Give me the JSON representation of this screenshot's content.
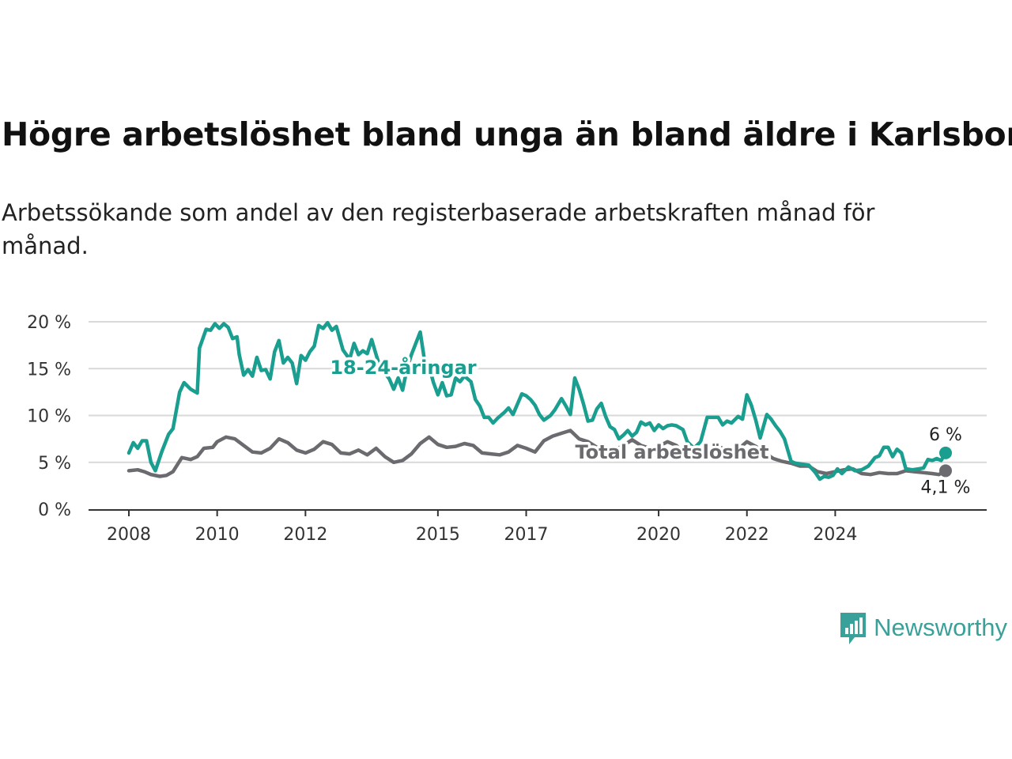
{
  "title": "Högre arbetslöshet bland unga än bland äldre i Karlsborg",
  "subtitle": "Arbetssökande som andel av den registerbaserade arbetskraften månad för månad.",
  "brand": {
    "name": "Newsworthy",
    "color": "#3aa19a"
  },
  "chart_data": {
    "type": "line",
    "x_unit": "year",
    "ylim": [
      0,
      20
    ],
    "y_ticks": [
      "0 %",
      "5 %",
      "10 %",
      "15 %",
      "20 %"
    ],
    "x_ticks": [
      "2008",
      "2010",
      "2012",
      "2015",
      "2017",
      "2020",
      "2022",
      "2024"
    ],
    "grid": true,
    "series": [
      {
        "name": "18-24-åringar",
        "color": "#1a9e8f",
        "end_label": "6 %",
        "points": [
          [
            2008.0,
            6.0
          ],
          [
            2008.1,
            7.1
          ],
          [
            2008.2,
            6.5
          ],
          [
            2008.3,
            7.3
          ],
          [
            2008.4,
            7.3
          ],
          [
            2008.5,
            5.0
          ],
          [
            2008.6,
            4.1
          ],
          [
            2008.75,
            6.2
          ],
          [
            2008.9,
            8.0
          ],
          [
            2009.0,
            8.6
          ],
          [
            2009.15,
            12.5
          ],
          [
            2009.25,
            13.5
          ],
          [
            2009.4,
            12.8
          ],
          [
            2009.55,
            12.4
          ],
          [
            2009.6,
            17.2
          ],
          [
            2009.75,
            19.2
          ],
          [
            2009.85,
            19.1
          ],
          [
            2009.95,
            19.8
          ],
          [
            2010.05,
            19.3
          ],
          [
            2010.15,
            19.8
          ],
          [
            2010.25,
            19.4
          ],
          [
            2010.35,
            18.2
          ],
          [
            2010.45,
            18.4
          ],
          [
            2010.5,
            16.5
          ],
          [
            2010.6,
            14.3
          ],
          [
            2010.7,
            14.9
          ],
          [
            2010.8,
            14.2
          ],
          [
            2010.9,
            16.2
          ],
          [
            2011.0,
            14.8
          ],
          [
            2011.1,
            14.9
          ],
          [
            2011.2,
            13.9
          ],
          [
            2011.3,
            16.8
          ],
          [
            2011.4,
            18.0
          ],
          [
            2011.5,
            15.6
          ],
          [
            2011.6,
            16.2
          ],
          [
            2011.7,
            15.6
          ],
          [
            2011.8,
            13.4
          ],
          [
            2011.9,
            16.4
          ],
          [
            2012.0,
            15.9
          ],
          [
            2012.1,
            16.8
          ],
          [
            2012.2,
            17.4
          ],
          [
            2012.3,
            19.6
          ],
          [
            2012.4,
            19.3
          ],
          [
            2012.5,
            19.9
          ],
          [
            2012.6,
            19.1
          ],
          [
            2012.7,
            19.5
          ],
          [
            2012.85,
            17.0
          ],
          [
            2013.0,
            16.0
          ],
          [
            2013.1,
            17.7
          ],
          [
            2013.2,
            16.5
          ],
          [
            2013.3,
            16.9
          ],
          [
            2013.4,
            16.6
          ],
          [
            2013.5,
            18.1
          ],
          [
            2013.6,
            16.5
          ],
          [
            2013.7,
            15.0
          ],
          [
            2013.8,
            14.5
          ],
          [
            2013.9,
            13.9
          ],
          [
            2014.0,
            12.8
          ],
          [
            2014.1,
            14.0
          ],
          [
            2014.2,
            12.7
          ],
          [
            2014.3,
            15.0
          ],
          [
            2014.4,
            16.5
          ],
          [
            2014.5,
            17.7
          ],
          [
            2014.6,
            18.9
          ],
          [
            2014.7,
            15.8
          ],
          [
            2014.8,
            15.2
          ],
          [
            2014.9,
            13.5
          ],
          [
            2015.0,
            12.2
          ],
          [
            2015.1,
            13.5
          ],
          [
            2015.2,
            12.1
          ],
          [
            2015.3,
            12.2
          ],
          [
            2015.4,
            14.0
          ],
          [
            2015.5,
            13.6
          ],
          [
            2015.6,
            14.2
          ],
          [
            2015.75,
            13.6
          ],
          [
            2015.85,
            11.7
          ],
          [
            2015.95,
            11.0
          ],
          [
            2016.05,
            9.8
          ],
          [
            2016.15,
            9.8
          ],
          [
            2016.25,
            9.2
          ],
          [
            2016.35,
            9.7
          ],
          [
            2016.5,
            10.3
          ],
          [
            2016.6,
            10.8
          ],
          [
            2016.7,
            10.1
          ],
          [
            2016.8,
            11.2
          ],
          [
            2016.9,
            12.3
          ],
          [
            2017.0,
            12.1
          ],
          [
            2017.1,
            11.7
          ],
          [
            2017.2,
            11.1
          ],
          [
            2017.3,
            10.1
          ],
          [
            2017.4,
            9.5
          ],
          [
            2017.55,
            10.0
          ],
          [
            2017.65,
            10.6
          ],
          [
            2017.8,
            11.8
          ],
          [
            2017.9,
            11.0
          ],
          [
            2018.0,
            10.1
          ],
          [
            2018.1,
            14.0
          ],
          [
            2018.2,
            12.8
          ],
          [
            2018.3,
            11.2
          ],
          [
            2018.4,
            9.4
          ],
          [
            2018.5,
            9.5
          ],
          [
            2018.6,
            10.7
          ],
          [
            2018.7,
            11.3
          ],
          [
            2018.8,
            9.9
          ],
          [
            2018.9,
            8.8
          ],
          [
            2019.0,
            8.5
          ],
          [
            2019.1,
            7.5
          ],
          [
            2019.2,
            7.9
          ],
          [
            2019.3,
            8.4
          ],
          [
            2019.4,
            7.8
          ],
          [
            2019.5,
            8.2
          ],
          [
            2019.6,
            9.3
          ],
          [
            2019.7,
            9.0
          ],
          [
            2019.8,
            9.2
          ],
          [
            2019.9,
            8.4
          ],
          [
            2020.0,
            9.0
          ],
          [
            2020.1,
            8.6
          ],
          [
            2020.2,
            8.9
          ],
          [
            2020.3,
            9.0
          ],
          [
            2020.4,
            8.9
          ],
          [
            2020.55,
            8.5
          ],
          [
            2020.65,
            7.2
          ],
          [
            2020.8,
            6.5
          ],
          [
            2020.95,
            7.2
          ],
          [
            2021.1,
            9.8
          ],
          [
            2021.25,
            9.8
          ],
          [
            2021.35,
            9.8
          ],
          [
            2021.45,
            9.0
          ],
          [
            2021.55,
            9.4
          ],
          [
            2021.65,
            9.2
          ],
          [
            2021.8,
            9.9
          ],
          [
            2021.9,
            9.6
          ],
          [
            2022.0,
            12.2
          ],
          [
            2022.1,
            11.1
          ],
          [
            2022.2,
            9.5
          ],
          [
            2022.3,
            7.6
          ],
          [
            2022.45,
            10.1
          ],
          [
            2022.55,
            9.6
          ],
          [
            2022.65,
            8.9
          ],
          [
            2022.75,
            8.3
          ],
          [
            2022.85,
            7.5
          ],
          [
            2023.0,
            5.1
          ],
          [
            2023.1,
            4.9
          ],
          [
            2023.25,
            4.8
          ],
          [
            2023.4,
            4.7
          ],
          [
            2023.55,
            3.9
          ],
          [
            2023.65,
            3.2
          ],
          [
            2023.75,
            3.5
          ],
          [
            2023.85,
            3.4
          ],
          [
            2023.95,
            3.6
          ],
          [
            2024.05,
            4.3
          ],
          [
            2024.15,
            3.8
          ],
          [
            2024.3,
            4.5
          ],
          [
            2024.45,
            4.1
          ],
          [
            2024.6,
            4.2
          ],
          [
            2024.75,
            4.6
          ],
          [
            2024.9,
            5.5
          ],
          [
            2025.0,
            5.7
          ],
          [
            2025.1,
            6.6
          ],
          [
            2025.2,
            6.6
          ],
          [
            2025.3,
            5.6
          ],
          [
            2025.4,
            6.4
          ],
          [
            2025.5,
            6.0
          ],
          [
            2025.6,
            4.3
          ],
          [
            2025.75,
            4.2
          ],
          [
            2025.9,
            4.3
          ],
          [
            2026.0,
            4.4
          ],
          [
            2026.1,
            5.3
          ],
          [
            2026.2,
            5.2
          ],
          [
            2026.3,
            5.4
          ],
          [
            2026.4,
            5.2
          ],
          [
            2026.5,
            6.0
          ]
        ]
      },
      {
        "name": "Total arbetslöshet",
        "color": "#6b6a6e",
        "end_label": "4,1 %",
        "points": [
          [
            2008.0,
            4.1
          ],
          [
            2008.2,
            4.2
          ],
          [
            2008.35,
            4.0
          ],
          [
            2008.5,
            3.7
          ],
          [
            2008.7,
            3.5
          ],
          [
            2008.85,
            3.6
          ],
          [
            2009.0,
            4.0
          ],
          [
            2009.2,
            5.5
          ],
          [
            2009.4,
            5.3
          ],
          [
            2009.55,
            5.6
          ],
          [
            2009.7,
            6.5
          ],
          [
            2009.9,
            6.6
          ],
          [
            2010.0,
            7.2
          ],
          [
            2010.2,
            7.7
          ],
          [
            2010.4,
            7.5
          ],
          [
            2010.6,
            6.8
          ],
          [
            2010.8,
            6.1
          ],
          [
            2011.0,
            6.0
          ],
          [
            2011.2,
            6.5
          ],
          [
            2011.4,
            7.5
          ],
          [
            2011.6,
            7.1
          ],
          [
            2011.8,
            6.3
          ],
          [
            2012.0,
            6.0
          ],
          [
            2012.2,
            6.4
          ],
          [
            2012.4,
            7.2
          ],
          [
            2012.6,
            6.9
          ],
          [
            2012.8,
            6.0
          ],
          [
            2013.0,
            5.9
          ],
          [
            2013.2,
            6.3
          ],
          [
            2013.4,
            5.8
          ],
          [
            2013.6,
            6.5
          ],
          [
            2013.8,
            5.6
          ],
          [
            2014.0,
            5.0
          ],
          [
            2014.2,
            5.2
          ],
          [
            2014.4,
            5.9
          ],
          [
            2014.6,
            7.0
          ],
          [
            2014.8,
            7.7
          ],
          [
            2015.0,
            6.9
          ],
          [
            2015.2,
            6.6
          ],
          [
            2015.4,
            6.7
          ],
          [
            2015.6,
            7.0
          ],
          [
            2015.8,
            6.8
          ],
          [
            2016.0,
            6.0
          ],
          [
            2016.2,
            5.9
          ],
          [
            2016.4,
            5.8
          ],
          [
            2016.6,
            6.1
          ],
          [
            2016.8,
            6.8
          ],
          [
            2017.0,
            6.5
          ],
          [
            2017.2,
            6.1
          ],
          [
            2017.4,
            7.3
          ],
          [
            2017.6,
            7.8
          ],
          [
            2017.8,
            8.1
          ],
          [
            2018.0,
            8.4
          ],
          [
            2018.2,
            7.5
          ],
          [
            2018.4,
            7.2
          ],
          [
            2018.6,
            6.6
          ],
          [
            2018.8,
            6.2
          ],
          [
            2019.0,
            6.3
          ],
          [
            2019.2,
            6.8
          ],
          [
            2019.4,
            7.4
          ],
          [
            2019.6,
            6.8
          ],
          [
            2019.8,
            6.5
          ],
          [
            2020.0,
            6.7
          ],
          [
            2020.2,
            7.2
          ],
          [
            2020.4,
            6.8
          ],
          [
            2020.6,
            5.9
          ],
          [
            2020.8,
            5.7
          ],
          [
            2021.0,
            6.0
          ],
          [
            2021.2,
            6.4
          ],
          [
            2021.4,
            6.6
          ],
          [
            2021.6,
            6.2
          ],
          [
            2021.8,
            6.4
          ],
          [
            2022.0,
            7.2
          ],
          [
            2022.2,
            6.7
          ],
          [
            2022.4,
            6.0
          ],
          [
            2022.6,
            5.4
          ],
          [
            2022.8,
            5.1
          ],
          [
            2023.0,
            4.9
          ],
          [
            2023.2,
            4.6
          ],
          [
            2023.4,
            4.6
          ],
          [
            2023.6,
            4.0
          ],
          [
            2023.8,
            3.8
          ],
          [
            2024.0,
            4.0
          ],
          [
            2024.2,
            4.2
          ],
          [
            2024.4,
            4.3
          ],
          [
            2024.6,
            3.8
          ],
          [
            2024.8,
            3.7
          ],
          [
            2025.0,
            3.9
          ],
          [
            2025.2,
            3.8
          ],
          [
            2025.4,
            3.8
          ],
          [
            2025.6,
            4.1
          ],
          [
            2025.8,
            4.0
          ],
          [
            2026.0,
            3.9
          ],
          [
            2026.2,
            3.8
          ],
          [
            2026.35,
            3.7
          ],
          [
            2026.5,
            4.1
          ]
        ]
      }
    ]
  }
}
